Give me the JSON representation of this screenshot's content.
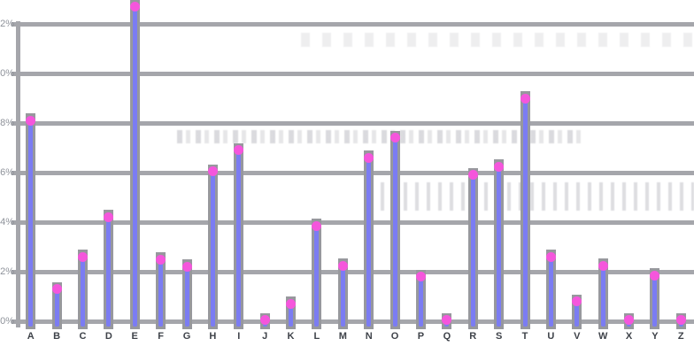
{
  "page": {
    "background_color": "#ffffff",
    "title": ""
  },
  "chart_data": {
    "type": "bar",
    "variant": "lollipop",
    "title": "",
    "xlabel": "",
    "ylabel": "",
    "categories": [
      "A",
      "B",
      "C",
      "D",
      "E",
      "F",
      "G",
      "H",
      "I",
      "J",
      "K",
      "L",
      "M",
      "N",
      "O",
      "P",
      "Q",
      "R",
      "S",
      "T",
      "U",
      "V",
      "W",
      "X",
      "Y",
      "Z"
    ],
    "values": [
      8.1,
      1.3,
      2.6,
      4.2,
      12.7,
      2.5,
      2.2,
      6.05,
      6.9,
      0.05,
      0.7,
      3.85,
      2.25,
      6.6,
      7.4,
      1.8,
      0.05,
      5.9,
      6.25,
      9.0,
      2.6,
      0.8,
      2.25,
      0.05,
      1.85,
      0.05
    ],
    "value_unit": "%",
    "ylim": [
      0,
      12.8
    ],
    "grid": true,
    "legend": false,
    "yticks": [
      {
        "value": 0,
        "visible_label": "0%"
      },
      {
        "value": 2,
        "visible_label": "2%"
      },
      {
        "value": 4,
        "visible_label": "4%"
      },
      {
        "value": 6,
        "visible_label": "6%"
      },
      {
        "value": 8,
        "visible_label": "8%"
      },
      {
        "value": 10,
        "visible_label": "0%"
      },
      {
        "value": 12,
        "visible_label": "2%"
      }
    ],
    "ytick_labels_clipped_at_left_edge": true,
    "colors": {
      "stem": "#7b7cf3",
      "dot": "#f556dc",
      "grid": "#a5a6ab",
      "axis": "#a5a6ab",
      "stem_backdrop": "#97989d",
      "x_label": "#3e4249",
      "y_label": "#8e929a"
    }
  }
}
